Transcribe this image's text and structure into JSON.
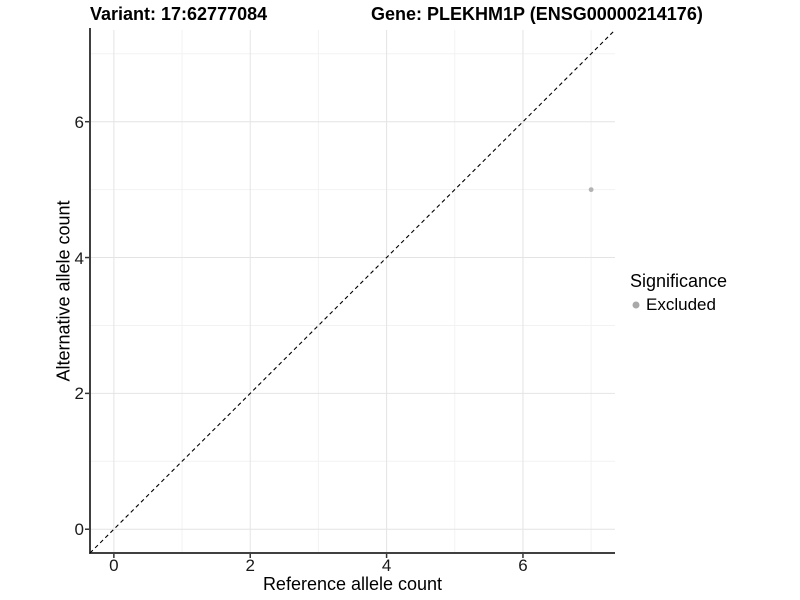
{
  "chart_data": {
    "type": "scatter",
    "title_left": "Variant: 17:62777084",
    "title_right": "Gene: PLEKHM1P (ENSG00000214176)",
    "xlabel": "Reference allele count",
    "ylabel": "Alternative allele count",
    "xlim": [
      -0.35,
      7.35
    ],
    "ylim": [
      -0.35,
      7.35
    ],
    "xticks": [
      0,
      2,
      4,
      6
    ],
    "yticks": [
      0,
      2,
      4,
      6
    ],
    "xtick_labels": [
      "0",
      "2",
      "4",
      "6"
    ],
    "ytick_labels": [
      "0",
      "2",
      "4",
      "6"
    ],
    "minor_xticks": [
      1,
      3,
      5,
      7
    ],
    "minor_yticks": [
      1,
      3,
      5,
      7
    ],
    "grid": "major+minor",
    "reference_line": {
      "kind": "identity-diagonal",
      "style": "dashed",
      "from": [
        -0.35,
        -0.35
      ],
      "to": [
        7.35,
        7.35
      ]
    },
    "series": [
      {
        "name": "Excluded",
        "color": "#b3b3b3",
        "points": [
          [
            7,
            5
          ]
        ]
      }
    ],
    "legend": {
      "title": "Significance",
      "position": "right-center",
      "items": [
        {
          "label": "Excluded",
          "color": "#a9a9a9"
        }
      ]
    }
  },
  "colors": {
    "background": "#ffffff",
    "grid_major": "#e4e4e4",
    "grid_minor": "#f2f2f2",
    "axis_line": "#404040",
    "tick": "#333333",
    "dashed_line": "#000000",
    "point": "#b3b3b3",
    "text": "#000000"
  }
}
